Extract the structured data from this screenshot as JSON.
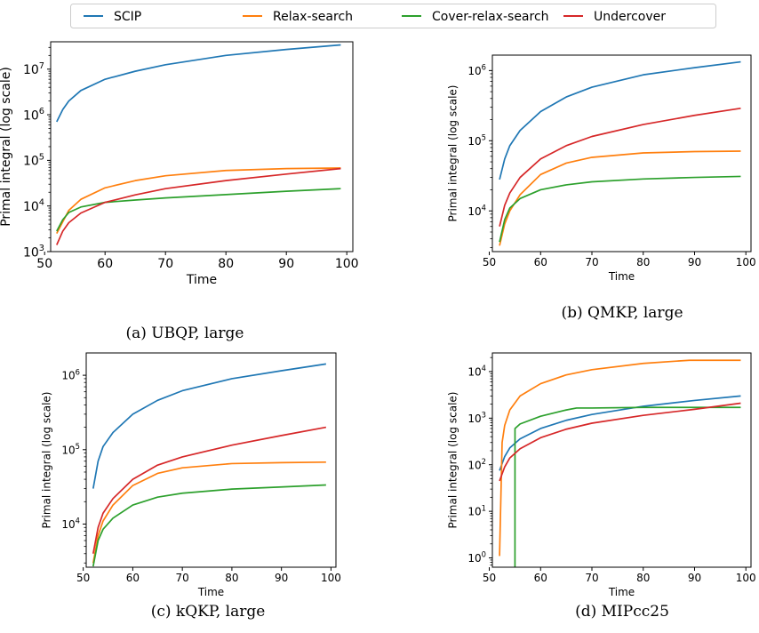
{
  "legend": {
    "entries": [
      {
        "name": "SCIP",
        "color": "#1f77b4"
      },
      {
        "name": "Relax-search",
        "color": "#ff7f0e"
      },
      {
        "name": "Cover-relax-search",
        "color": "#2ca02c"
      },
      {
        "name": "Undercover",
        "color": "#d62728"
      }
    ]
  },
  "chart_data": [
    {
      "type": "line",
      "caption": "(a) UBQP, large",
      "xlabel": "Time",
      "ylabel": "Primal integral (log scale)",
      "xlim": [
        51,
        101
      ],
      "ylim_exp": [
        3,
        7.6
      ],
      "log_y": true,
      "xticks": [
        "50",
        "60",
        "70",
        "80",
        "90",
        "100"
      ],
      "yticks": [
        {
          "exp": 3,
          "label": "3"
        },
        {
          "exp": 4,
          "label": "4"
        },
        {
          "exp": 5,
          "label": "5"
        },
        {
          "exp": 6,
          "label": "6"
        },
        {
          "exp": 7,
          "label": "7"
        }
      ],
      "series": [
        {
          "name": "SCIP",
          "color": "#1f77b4",
          "x": [
            52,
            53,
            54,
            56,
            60,
            65,
            70,
            80,
            90,
            99
          ],
          "y": [
            700000,
            1300000,
            2000000,
            3400000,
            6000000,
            9000000,
            12500000,
            20000000,
            27000000,
            34000000
          ]
        },
        {
          "name": "Relax-search",
          "color": "#ff7f0e",
          "x": [
            52,
            53,
            54,
            56,
            60,
            65,
            70,
            80,
            90,
            99
          ],
          "y": [
            2500,
            4500,
            8000,
            14000,
            25000,
            36000,
            46000,
            60000,
            66000,
            68000
          ]
        },
        {
          "name": "Cover-relax-search",
          "color": "#2ca02c",
          "x": [
            52,
            53,
            54,
            56,
            60,
            65,
            70,
            80,
            90,
            99
          ],
          "y": [
            2800,
            5000,
            7200,
            9500,
            12000,
            13500,
            15000,
            17800,
            21000,
            24000
          ]
        },
        {
          "name": "Undercover",
          "color": "#d62728",
          "x": [
            52,
            53,
            54,
            56,
            60,
            65,
            70,
            80,
            90,
            99
          ],
          "y": [
            1400,
            2800,
            4300,
            7000,
            12000,
            17500,
            24000,
            36000,
            50000,
            66000
          ]
        }
      ]
    },
    {
      "type": "line",
      "caption": "(b) QMKP, large",
      "xlabel": "Time",
      "ylabel": "Primal integral (log scale)",
      "xlim": [
        50.6,
        101
      ],
      "ylim_exp": [
        3.42,
        6.22
      ],
      "log_y": true,
      "xticks": [
        "50",
        "60",
        "70",
        "80",
        "90",
        "100"
      ],
      "yticks": [
        {
          "exp": 4,
          "label": "4"
        },
        {
          "exp": 5,
          "label": "5"
        },
        {
          "exp": 6,
          "label": "6"
        }
      ],
      "series": [
        {
          "name": "SCIP",
          "color": "#1f77b4",
          "x": [
            52,
            53,
            54,
            56,
            60,
            65,
            70,
            80,
            90,
            99
          ],
          "y": [
            28000,
            55000,
            85000,
            140000,
            260000,
            420000,
            580000,
            870000,
            1100000,
            1330000
          ]
        },
        {
          "name": "Relax-search",
          "color": "#ff7f0e",
          "x": [
            52,
            53,
            54,
            56,
            60,
            65,
            70,
            80,
            90,
            99
          ],
          "y": [
            3200,
            6500,
            10000,
            17000,
            33000,
            48000,
            58000,
            67000,
            70000,
            71000
          ]
        },
        {
          "name": "Cover-relax-search",
          "color": "#2ca02c",
          "x": [
            52,
            53,
            54,
            56,
            60,
            65,
            70,
            80,
            90,
            99
          ],
          "y": [
            3600,
            7500,
            11000,
            15000,
            20000,
            23500,
            26000,
            28500,
            30000,
            31000
          ]
        },
        {
          "name": "Undercover",
          "color": "#d62728",
          "x": [
            52,
            53,
            54,
            56,
            60,
            65,
            70,
            80,
            90,
            99
          ],
          "y": [
            6000,
            12000,
            18000,
            30000,
            55000,
            85000,
            115000,
            170000,
            230000,
            290000
          ]
        }
      ]
    },
    {
      "type": "line",
      "caption": "(c) kQKP, large",
      "xlabel": "Time",
      "ylabel": "Primal integral (log scale)",
      "xlim": [
        50.6,
        101
      ],
      "ylim_exp": [
        3.42,
        6.3
      ],
      "log_y": true,
      "xticks": [
        "50",
        "60",
        "70",
        "80",
        "90",
        "100"
      ],
      "yticks": [
        {
          "exp": 4,
          "label": "4"
        },
        {
          "exp": 5,
          "label": "5"
        },
        {
          "exp": 6,
          "label": "6"
        }
      ],
      "series": [
        {
          "name": "SCIP",
          "color": "#1f77b4",
          "x": [
            52,
            53,
            54,
            56,
            60,
            65,
            70,
            80,
            90,
            99
          ],
          "y": [
            30000,
            70000,
            110000,
            170000,
            300000,
            460000,
            620000,
            900000,
            1150000,
            1420000
          ]
        },
        {
          "name": "Relax-search",
          "color": "#ff7f0e",
          "x": [
            52,
            53,
            54,
            56,
            60,
            65,
            70,
            80,
            90,
            99
          ],
          "y": [
            3000,
            7000,
            11000,
            18000,
            33000,
            48000,
            57000,
            65000,
            67000,
            68000
          ]
        },
        {
          "name": "Cover-relax-search",
          "color": "#2ca02c",
          "x": [
            52,
            53,
            54,
            56,
            60,
            65,
            70,
            80,
            90,
            99
          ],
          "y": [
            2700,
            6000,
            8500,
            12000,
            18000,
            23000,
            26000,
            29500,
            31500,
            33500
          ]
        },
        {
          "name": "Undercover",
          "color": "#d62728",
          "x": [
            52,
            53,
            54,
            56,
            60,
            65,
            70,
            80,
            90,
            99
          ],
          "y": [
            4000,
            9000,
            14000,
            22000,
            40000,
            62000,
            80000,
            115000,
            155000,
            200000
          ]
        }
      ]
    },
    {
      "type": "line",
      "caption": "(d) MIPcc25",
      "xlabel": "Time",
      "ylabel": "Primal integral (log scale)",
      "xlim": [
        50.6,
        101
      ],
      "ylim_exp": [
        -0.2,
        4.4
      ],
      "log_y": true,
      "xticks": [
        "50",
        "60",
        "70",
        "80",
        "90",
        "100"
      ],
      "yticks": [
        {
          "exp": 0,
          "label": "0"
        },
        {
          "exp": 1,
          "label": "1"
        },
        {
          "exp": 2,
          "label": "2"
        },
        {
          "exp": 3,
          "label": "3"
        },
        {
          "exp": 4,
          "label": "4"
        }
      ],
      "series": [
        {
          "name": "SCIP",
          "color": "#1f77b4",
          "x": [
            52,
            53,
            54,
            56,
            60,
            65,
            70,
            80,
            90,
            99
          ],
          "y": [
            75,
            150,
            230,
            360,
            600,
            900,
            1200,
            1800,
            2400,
            3000
          ]
        },
        {
          "name": "Relax-search",
          "color": "#ff7f0e",
          "x": [
            52,
            52.5,
            53,
            54,
            56,
            60,
            65,
            70,
            80,
            89,
            99
          ],
          "y": [
            1.1,
            300,
            700,
            1500,
            3000,
            5500,
            8500,
            11000,
            15000,
            17500,
            17500
          ]
        },
        {
          "name": "Cover-relax-search",
          "color": "#2ca02c",
          "x": [
            55,
            55.01,
            56,
            60,
            65,
            67,
            70,
            80,
            90,
            99
          ],
          "y": [
            0.01,
            600,
            750,
            1100,
            1500,
            1650,
            1650,
            1700,
            1700,
            1700
          ]
        },
        {
          "name": "Undercover",
          "color": "#d62728",
          "x": [
            52,
            53,
            54,
            56,
            60,
            65,
            70,
            80,
            90,
            99
          ],
          "y": [
            45,
            90,
            140,
            220,
            380,
            580,
            780,
            1150,
            1550,
            2100
          ]
        }
      ]
    }
  ]
}
